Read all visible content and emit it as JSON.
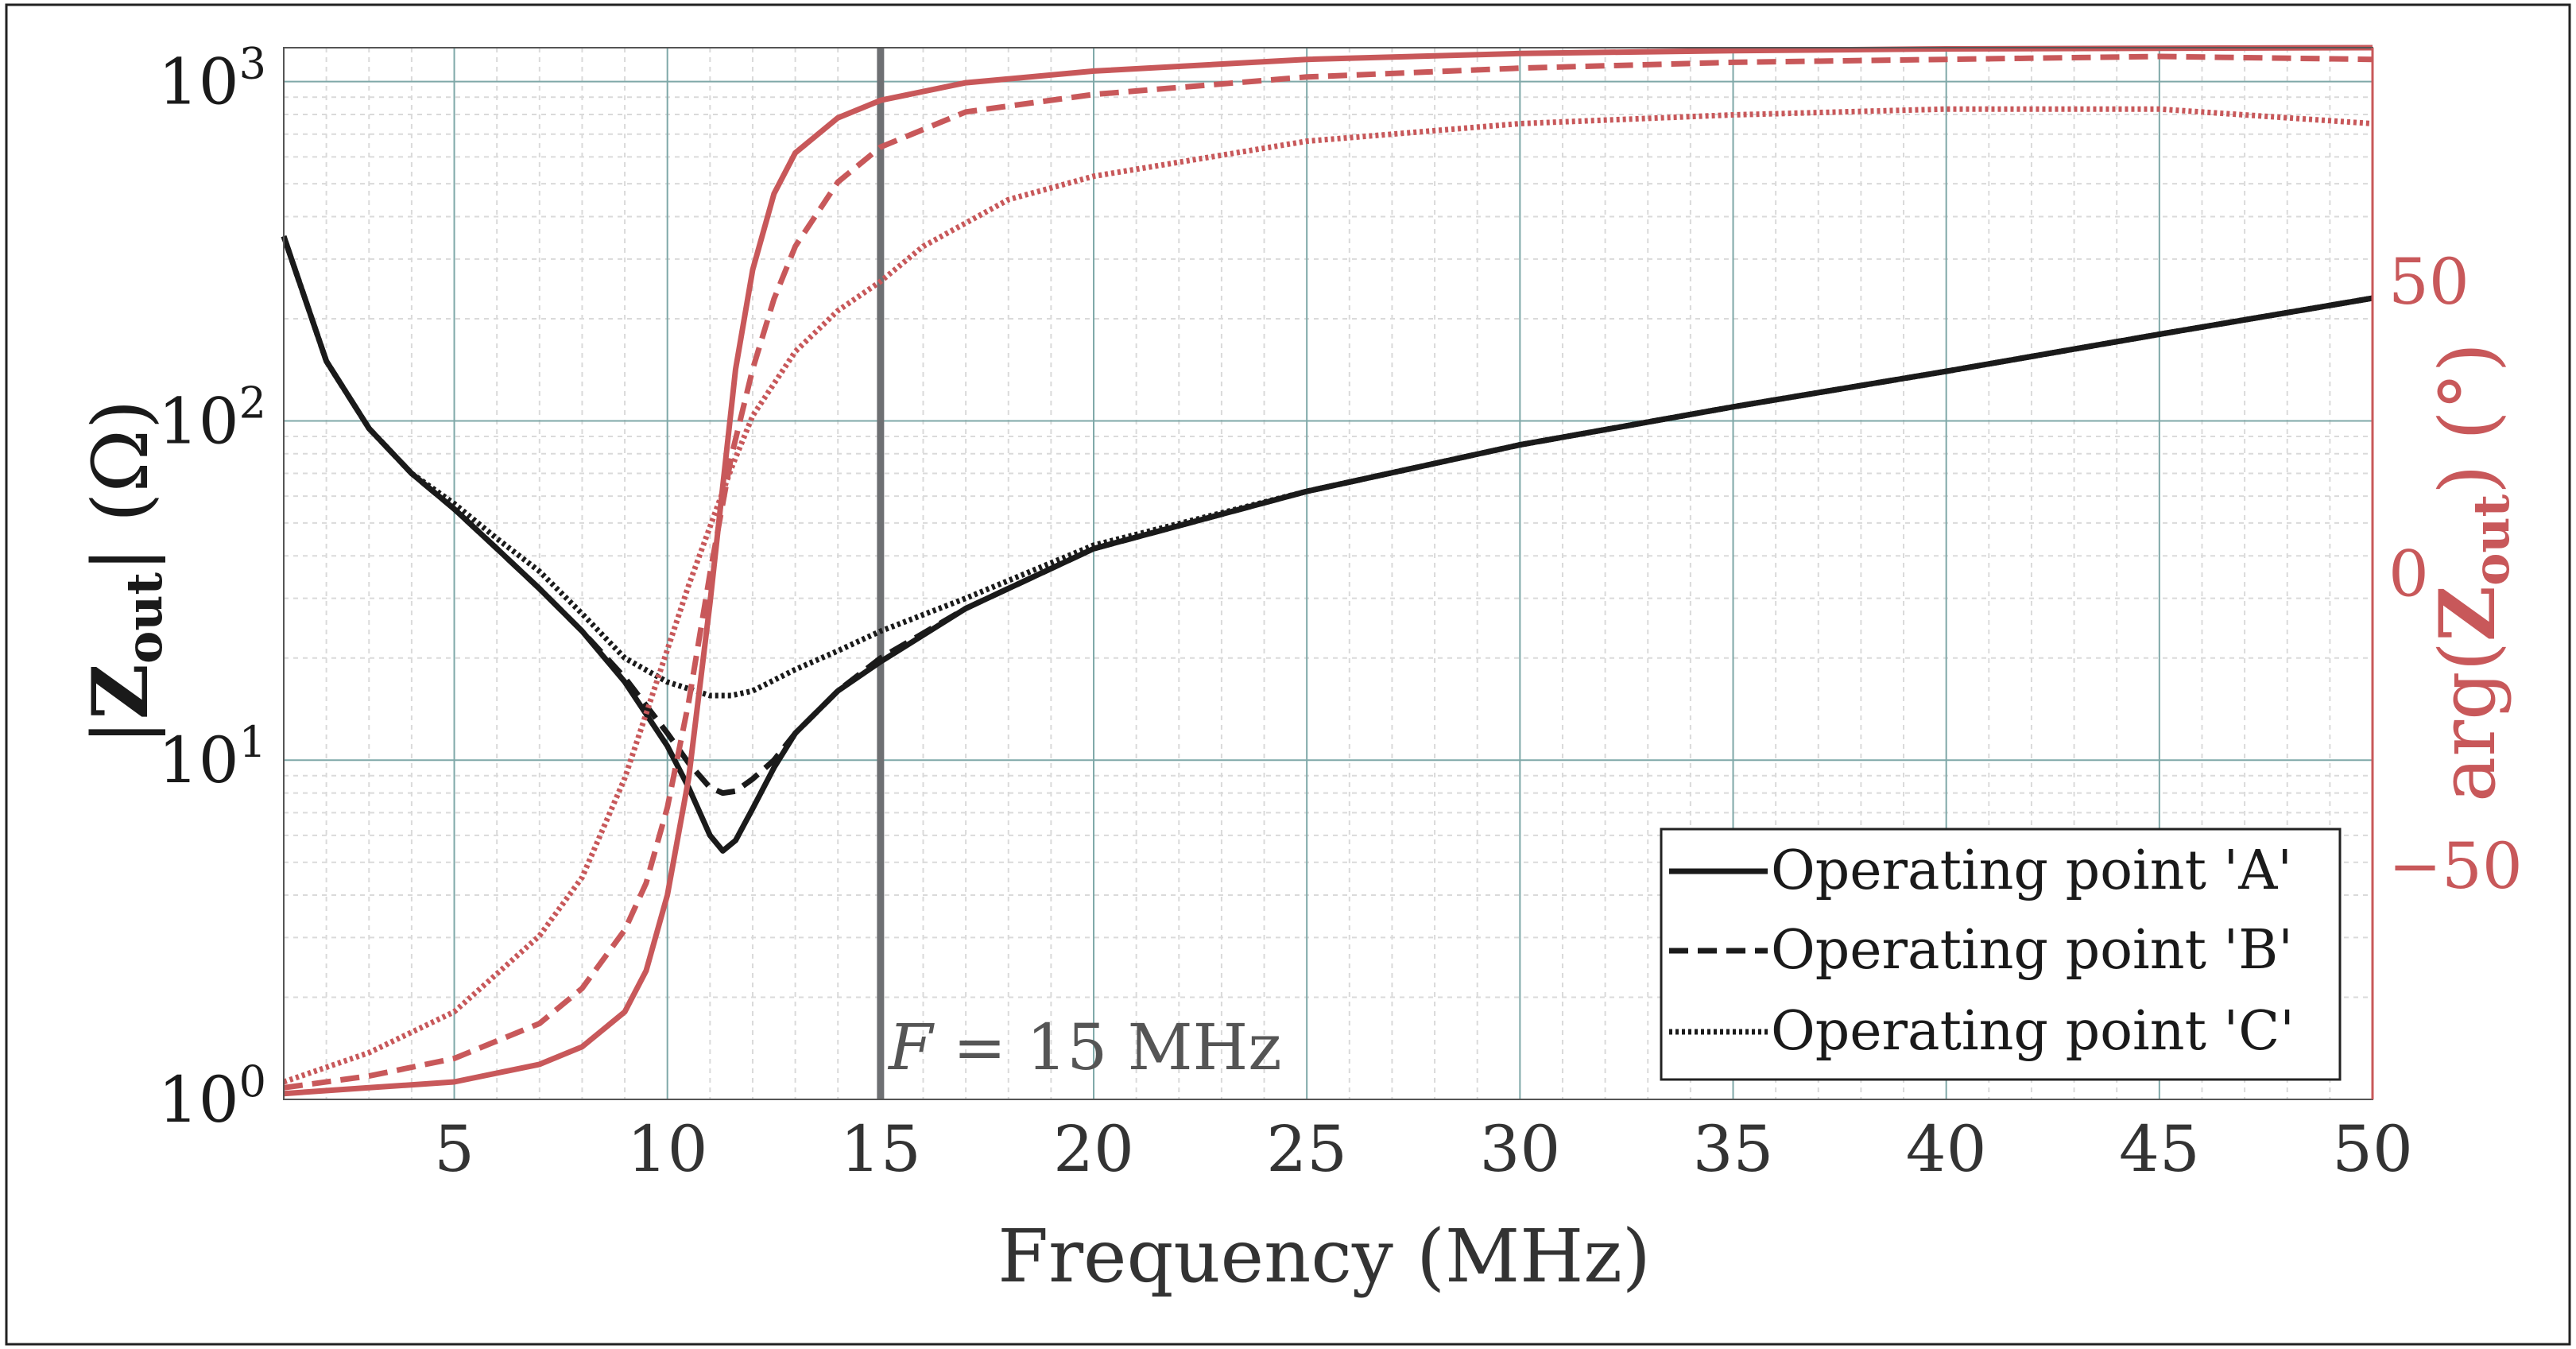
{
  "chart_data": {
    "type": "line",
    "x_label": "Frequency (MHz)",
    "y_label_left": "|Zout| (Ω)",
    "y_label_left_main": "Z",
    "y_label_left_sub": "out",
    "y_label_left_unit": "(Ω)",
    "y_label_right": "arg(Zout) (°)",
    "y_label_right_main": "arg(",
    "y_label_right_Z": "Z",
    "y_label_right_sub": "out",
    "y_label_right_close": ")",
    "y_label_right_unit": "(°)",
    "x_range": [
      1,
      50
    ],
    "y_left_range_log10": [
      0,
      3.1
    ],
    "y_left_scale": "log",
    "y_right_range": [
      -90,
      90
    ],
    "x_ticks": [
      5,
      10,
      15,
      20,
      25,
      30,
      35,
      40,
      45,
      50
    ],
    "x_tick_labels": [
      "5",
      "10",
      "15",
      "20",
      "25",
      "30",
      "35",
      "40",
      "45",
      "50"
    ],
    "y_left_ticks_exp": [
      0,
      1,
      2,
      3
    ],
    "y_left_tick_base": "10",
    "y_left_tick_exponents": [
      "0",
      "1",
      "2",
      "3"
    ],
    "y_right_ticks": [
      -50,
      0,
      50
    ],
    "y_right_tick_labels": [
      "−50",
      "0",
      "50"
    ],
    "marker": {
      "x": 15,
      "label_var": "F",
      "label_rest": "= 15 MHz"
    },
    "legend": {
      "position": "bottom-right",
      "entries": [
        "Operating point 'A'",
        "Operating point 'B'",
        "Operating point 'C'"
      ]
    },
    "series": [
      {
        "name": "Operating point 'A'",
        "quantity": "magnitude",
        "axis": "left",
        "style": "solid",
        "color": "#1a1a1a",
        "x": [
          1,
          2,
          3,
          4,
          5,
          6,
          7,
          8,
          9,
          10,
          10.5,
          11,
          11.3,
          11.6,
          12,
          12.5,
          13,
          14,
          15,
          17,
          20,
          25,
          30,
          35,
          40,
          45,
          50
        ],
        "y": [
          350,
          150,
          95,
          70,
          55,
          42,
          32,
          24,
          17,
          11,
          8.3,
          6.0,
          5.4,
          5.8,
          7.2,
          9.5,
          12,
          16,
          19.5,
          28,
          42,
          62,
          85,
          110,
          140,
          180,
          230
        ]
      },
      {
        "name": "Operating point 'B'",
        "quantity": "magnitude",
        "axis": "left",
        "style": "dashed",
        "color": "#1a1a1a",
        "x": [
          1,
          2,
          3,
          4,
          5,
          6,
          7,
          8,
          9,
          10,
          10.5,
          11,
          11.3,
          11.6,
          12,
          12.5,
          13,
          14,
          15,
          17,
          20,
          25,
          30,
          35,
          40,
          45,
          50
        ],
        "y": [
          350,
          150,
          95,
          70,
          55,
          42,
          32,
          24,
          17.5,
          12,
          9.8,
          8.3,
          8.0,
          8.1,
          8.8,
          10,
          12,
          16,
          20,
          28,
          42,
          62,
          85,
          110,
          140,
          180,
          230
        ]
      },
      {
        "name": "Operating point 'C'",
        "quantity": "magnitude",
        "axis": "left",
        "style": "dotted",
        "color": "#1a1a1a",
        "x": [
          1,
          2,
          3,
          4,
          5,
          6,
          7,
          8,
          9,
          10,
          11,
          11.5,
          12,
          13,
          14,
          15,
          17,
          20,
          25,
          30,
          35,
          40,
          45,
          50
        ],
        "y": [
          350,
          150,
          95,
          70,
          57,
          45,
          36,
          27,
          20,
          17,
          15.5,
          15.5,
          16,
          18.5,
          21,
          24,
          30,
          43,
          62,
          85,
          110,
          140,
          180,
          230
        ]
      },
      {
        "name": "Operating point 'A'",
        "quantity": "phase",
        "axis": "right",
        "style": "solid",
        "color": "#c8585a",
        "x": [
          1,
          3,
          5,
          7,
          8,
          9,
          9.5,
          10,
          10.5,
          11,
          11.3,
          11.6,
          12,
          12.5,
          13,
          14,
          15,
          17,
          20,
          25,
          30,
          35,
          40,
          45,
          50
        ],
        "y": [
          -89,
          -88,
          -87,
          -84,
          -81,
          -75,
          -68,
          -55,
          -35,
          -5,
          15,
          35,
          52,
          65,
          72,
          78,
          81,
          84,
          86,
          88,
          89,
          89.5,
          89.8,
          89.9,
          90
        ]
      },
      {
        "name": "Operating point 'B'",
        "quantity": "phase",
        "axis": "right",
        "style": "dashed",
        "color": "#c8585a",
        "x": [
          1,
          3,
          5,
          7,
          8,
          9,
          9.5,
          10,
          10.5,
          11,
          11.5,
          12,
          12.5,
          13,
          14,
          15,
          17,
          20,
          25,
          30,
          35,
          40,
          45,
          50
        ],
        "y": [
          -88,
          -86,
          -83,
          -77,
          -71,
          -61,
          -53,
          -40,
          -22,
          0,
          20,
          35,
          47,
          56,
          67,
          73,
          79,
          82,
          85,
          86.5,
          87.5,
          88,
          88.5,
          88
        ]
      },
      {
        "name": "Operating point 'C'",
        "quantity": "phase",
        "axis": "right",
        "style": "dotted",
        "color": "#c8585a",
        "x": [
          1,
          3,
          5,
          7,
          8,
          9,
          10,
          10.5,
          11,
          11.5,
          12,
          13,
          14,
          15,
          16,
          18,
          20,
          25,
          30,
          35,
          40,
          45,
          50
        ],
        "y": [
          -87,
          -82,
          -75,
          -62,
          -52,
          -35,
          -13,
          -2,
          8,
          18,
          27,
          38,
          45,
          50,
          56,
          64,
          68,
          74,
          77,
          78.5,
          79.5,
          79.5,
          77
        ]
      }
    ]
  }
}
